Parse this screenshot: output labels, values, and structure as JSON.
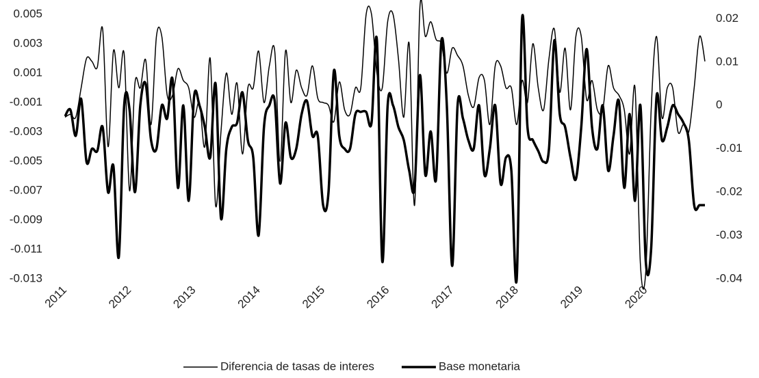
{
  "chart_data": {
    "type": "line",
    "categories": [
      "2011",
      null,
      null,
      null,
      null,
      null,
      null,
      null,
      null,
      null,
      null,
      null,
      "2012",
      null,
      null,
      null,
      null,
      null,
      null,
      null,
      null,
      null,
      null,
      null,
      "2013",
      null,
      null,
      null,
      null,
      null,
      null,
      null,
      null,
      null,
      null,
      null,
      "2014",
      null,
      null,
      null,
      null,
      null,
      null,
      null,
      null,
      null,
      null,
      null,
      "2015",
      null,
      null,
      null,
      null,
      null,
      null,
      null,
      null,
      null,
      null,
      null,
      "2016",
      null,
      null,
      null,
      null,
      null,
      null,
      null,
      null,
      null,
      null,
      null,
      "2017",
      null,
      null,
      null,
      null,
      null,
      null,
      null,
      null,
      null,
      null,
      null,
      "2018",
      null,
      null,
      null,
      null,
      null,
      null,
      null,
      null,
      null,
      null,
      null,
      "2019",
      null,
      null,
      null,
      null,
      null,
      null,
      null,
      null,
      null,
      null,
      null,
      "2020",
      null,
      null,
      null,
      null,
      null,
      null,
      null,
      null,
      null,
      null,
      null
    ],
    "series": [
      {
        "name": "Diferencia de tasas de interes",
        "color": "#000000",
        "width": 1.5,
        "values": [
          -0.002,
          -0.0018,
          -0.002,
          0.0,
          0.002,
          0.0018,
          0.0014,
          0.004,
          -0.004,
          0.0025,
          0.0,
          0.0023,
          -0.007,
          0.0003,
          0.0,
          0.0019,
          -0.0025,
          0.0035,
          0.0035,
          -0.0005,
          -0.0005,
          0.0013,
          0.0005,
          0.0,
          -0.002,
          -0.001,
          -0.004,
          0.002,
          -0.008,
          -0.003,
          0.001,
          -0.0018,
          0.0003,
          -0.0045,
          0.0,
          0.0,
          0.0025,
          -0.001,
          0.0015,
          0.0025,
          -0.005,
          0.0025,
          -0.001,
          0.0012,
          0.0,
          -0.0005,
          0.0015,
          -0.0007,
          -0.001,
          -0.0012,
          -0.0023,
          0.0004,
          -0.0015,
          -0.0018,
          0.0,
          0.0,
          0.005,
          0.005,
          0.001,
          0.0,
          0.0045,
          0.005,
          0.002,
          -0.002,
          0.003,
          -0.008,
          0.0055,
          0.0035,
          0.0045,
          0.0033,
          0.003,
          0.001,
          0.0027,
          0.0022,
          0.0015,
          -0.0005,
          -0.0013,
          0.0007,
          0.0005,
          -0.0025,
          0.0015,
          0.0015,
          0.0,
          0.0,
          -0.0025,
          0.0005,
          -0.001,
          0.003,
          0.0,
          -0.0015,
          0.002,
          0.004,
          -0.0003,
          0.0027,
          -0.0015,
          0.0035,
          0.0035,
          -0.0008,
          0.0005,
          -0.0015,
          -0.0015,
          0.0015,
          0.0,
          -0.0005,
          -0.0015,
          -0.0045,
          0.0,
          -0.012,
          -0.0125,
          -0.0015,
          0.0035,
          -0.002,
          0.0,
          0.0,
          -0.003,
          -0.0025,
          -0.003,
          0.0,
          0.0035,
          0.0018
        ]
      },
      {
        "name": "Base monetaria",
        "color": "#000000",
        "width": 3.5,
        "axis": "y2",
        "values": [
          -0.0025,
          -0.001,
          -0.007,
          0.0015,
          -0.013,
          -0.01,
          -0.0105,
          -0.005,
          -0.02,
          -0.014,
          -0.035,
          0.0,
          -0.001,
          -0.02,
          0.0,
          0.005,
          -0.008,
          -0.01,
          0.0,
          -0.003,
          0.006,
          -0.019,
          0.0,
          -0.022,
          0.002,
          0.0,
          -0.005,
          -0.012,
          0.005,
          -0.026,
          -0.01,
          -0.005,
          -0.004,
          0.003,
          -0.008,
          -0.012,
          -0.03,
          -0.005,
          0.0,
          0.001,
          -0.018,
          -0.004,
          -0.012,
          -0.01,
          -0.002,
          0.001,
          -0.007,
          -0.007,
          -0.023,
          -0.02,
          0.008,
          -0.007,
          -0.01,
          -0.01,
          -0.002,
          -0.0015,
          -0.0015,
          -0.004,
          0.015,
          -0.036,
          0.0,
          0.0,
          -0.005,
          -0.008,
          -0.015,
          -0.019,
          0.007,
          -0.016,
          -0.006,
          -0.017,
          0.015,
          0.0,
          -0.037,
          0.0,
          -0.003,
          -0.008,
          -0.01,
          0.0,
          -0.016,
          -0.01,
          0.0,
          -0.018,
          -0.012,
          -0.015,
          -0.04,
          0.02,
          -0.005,
          -0.008,
          -0.0105,
          -0.013,
          -0.01,
          0.015,
          -0.002,
          -0.005,
          -0.012,
          -0.017,
          -0.005,
          0.013,
          -0.005,
          -0.01,
          0.0,
          -0.015,
          -0.007,
          0.001,
          -0.019,
          -0.002,
          -0.022,
          0.0,
          -0.036,
          -0.033,
          0.002,
          -0.008,
          -0.005,
          0.0,
          -0.002,
          -0.004,
          -0.008,
          -0.023,
          -0.023,
          -0.023
        ]
      }
    ],
    "ylim": [
      -0.013,
      0.005
    ],
    "yticks": [
      0.005,
      0.003,
      0.001,
      -0.001,
      -0.003,
      -0.005,
      -0.007,
      -0.009,
      -0.011,
      -0.013
    ],
    "y2lim": [
      -0.04,
      0.021
    ],
    "y2ticks": [
      0.02,
      0.01,
      0,
      -0.01,
      -0.02,
      -0.03,
      -0.04
    ],
    "legend": "bottom"
  }
}
